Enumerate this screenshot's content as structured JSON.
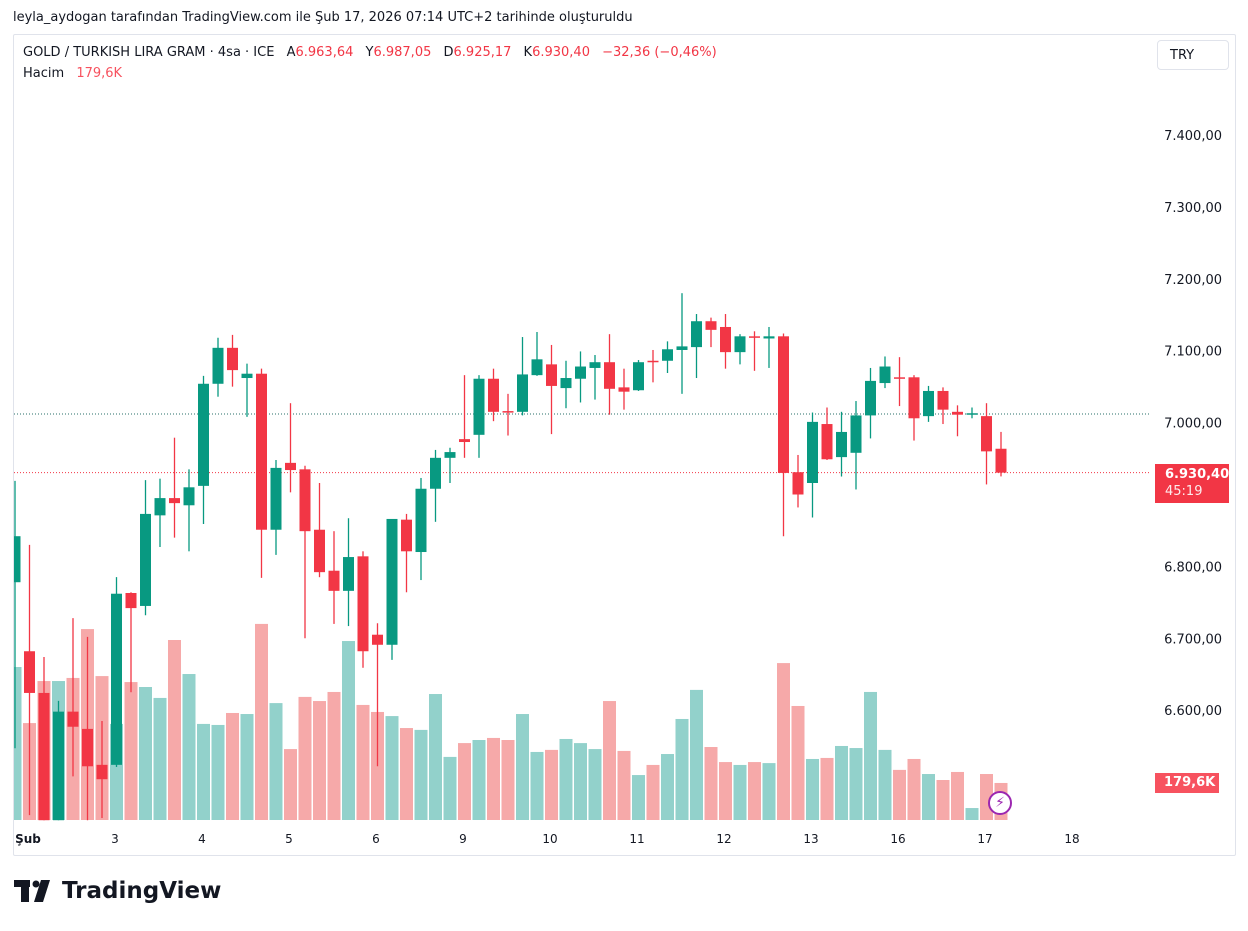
{
  "caption": "leyla_aydogan tarafından TradingView.com ile Şub 17, 2026 07:14 UTC+2 tarihinde oluşturuldu",
  "legend": {
    "symbol": "GOLD / TURKISH LIRA GRAM · 4sa · ICE",
    "open_label": "A",
    "open": "6.963,64",
    "high_label": "Y",
    "high": "6.987,05",
    "low_label": "D",
    "low": "6.925,17",
    "close_label": "K",
    "close": "6.930,40",
    "change": "−32,36 (−0,46%)",
    "volume_label": "Hacim",
    "volume": "179,6K"
  },
  "currency_button": "TRY",
  "price_badge": {
    "price": "6.930,40",
    "countdown": "45:19"
  },
  "volume_badge": "179,6K",
  "logo_text": "TradingView",
  "colors": {
    "up": "#089981",
    "down": "#f23645",
    "vol_up": "#92d1cb",
    "vol_down": "#f6a9a9"
  },
  "chart_data": {
    "type": "candlestick",
    "timeframe": "4h",
    "price_axis_ticks": [
      "7.400,00",
      "7.300,00",
      "7.200,00",
      "7.100,00",
      "7.000,00",
      "6.800,00",
      "6.700,00",
      "6.600,00"
    ],
    "price_axis_values": [
      7400,
      7300,
      7200,
      7100,
      7000,
      6800,
      6700,
      6600
    ],
    "time_axis_ticks": [
      "Şub",
      "3",
      "4",
      "5",
      "6",
      "9",
      "10",
      "11",
      "12",
      "13",
      "16",
      "17",
      "18"
    ],
    "last_price": 6930.4,
    "prev_level": 7012,
    "ohlc": [
      [
        6778,
        6919,
        6547,
        6842
      ],
      [
        6682,
        6830,
        6454,
        6624
      ],
      [
        6624,
        6674,
        6447,
        6447
      ],
      [
        6447,
        6613,
        6447,
        6598
      ],
      [
        6598,
        6728,
        6508,
        6577
      ],
      [
        6574,
        6702,
        6447,
        6522
      ],
      [
        6524,
        6585,
        6450,
        6504
      ],
      [
        6524,
        6785,
        6521,
        6762
      ],
      [
        6763,
        6764,
        6625,
        6742
      ],
      [
        6745,
        6920,
        6732,
        6873
      ],
      [
        6871,
        6922,
        6827,
        6895
      ],
      [
        6895,
        6979,
        6840,
        6888
      ],
      [
        6885,
        6935,
        6821,
        6910
      ],
      [
        6912,
        7065,
        6859,
        7054
      ],
      [
        7054,
        7118,
        7036,
        7104
      ],
      [
        7104,
        7122,
        7050,
        7073
      ],
      [
        7062,
        7082,
        7008,
        7068
      ],
      [
        7068,
        7075,
        6784,
        6851
      ],
      [
        6851,
        6948,
        6816,
        6937
      ],
      [
        6944,
        7027,
        6903,
        6934
      ],
      [
        6935,
        6940,
        6700,
        6849
      ],
      [
        6851,
        6916,
        6785,
        6792
      ],
      [
        6794,
        6849,
        6720,
        6766
      ],
      [
        6766,
        6867,
        6717,
        6813
      ],
      [
        6814,
        6821,
        6659,
        6682
      ],
      [
        6705,
        6721,
        6522,
        6691
      ],
      [
        6691,
        6866,
        6670,
        6866
      ],
      [
        6865,
        6873,
        6764,
        6821
      ],
      [
        6820,
        6923,
        6781,
        6908
      ],
      [
        6908,
        6962,
        6862,
        6951
      ],
      [
        6951,
        6965,
        6916,
        6959
      ],
      [
        6977,
        7066,
        6951,
        6973
      ],
      [
        6983,
        7066,
        6951,
        7061
      ],
      [
        7061,
        7075,
        7002,
        7015
      ],
      [
        7016,
        7040,
        6982,
        7015
      ],
      [
        7015,
        7119,
        7010,
        7067
      ],
      [
        7066,
        7126,
        7065,
        7088
      ],
      [
        7081,
        7108,
        6984,
        7051
      ],
      [
        7048,
        7086,
        7020,
        7062
      ],
      [
        7061,
        7099,
        7028,
        7078
      ],
      [
        7076,
        7094,
        7032,
        7084
      ],
      [
        7084,
        7123,
        7011,
        7047
      ],
      [
        7049,
        7075,
        7018,
        7043
      ],
      [
        7045,
        7087,
        7044,
        7084
      ],
      [
        7086,
        7101,
        7056,
        7085
      ],
      [
        7086,
        7113,
        7069,
        7102
      ],
      [
        7101,
        7180,
        7040,
        7106
      ],
      [
        7105,
        7151,
        7062,
        7141
      ],
      [
        7141,
        7146,
        7105,
        7129
      ],
      [
        7133,
        7151,
        7075,
        7098
      ],
      [
        7098,
        7123,
        7081,
        7120
      ],
      [
        7120,
        7127,
        7072,
        7119
      ],
      [
        7117,
        7133,
        7076,
        7120
      ],
      [
        7120,
        7124,
        6842,
        6930
      ],
      [
        6931,
        6955,
        6882,
        6900
      ],
      [
        6916,
        7014,
        6868,
        7001
      ],
      [
        6998,
        7021,
        6948,
        6949
      ],
      [
        6952,
        7015,
        6925,
        6987
      ],
      [
        6958,
        7030,
        6907,
        7010
      ],
      [
        7010,
        7076,
        6978,
        7058
      ],
      [
        7055,
        7092,
        7048,
        7078
      ],
      [
        7063,
        7091,
        7023,
        7062
      ],
      [
        7063,
        7066,
        6975,
        7006
      ],
      [
        7009,
        7051,
        7001,
        7044
      ],
      [
        7044,
        7049,
        6998,
        7018
      ],
      [
        7015,
        7024,
        6981,
        7011
      ],
      [
        7012,
        7021,
        7006,
        7013
      ],
      [
        7009,
        7027,
        6914,
        6960
      ],
      [
        6963.64,
        6987.05,
        6925.17,
        6930.4
      ]
    ],
    "volume_k": [
      742,
      470,
      674,
      674,
      689,
      926,
      698,
      466,
      669,
      645,
      592,
      873,
      708,
      466,
      461,
      519,
      514,
      951,
      567,
      344,
      597,
      577,
      621,
      868,
      558,
      524,
      504,
      446,
      437,
      611,
      306,
      373,
      388,
      398,
      388,
      514,
      330,
      340,
      393,
      373,
      344,
      577,
      335,
      218,
      267,
      320,
      490,
      631,
      354,
      281,
      267,
      281,
      276,
      761,
      553,
      296,
      301,
      359,
      349,
      621,
      340,
      243,
      296,
      223,
      194,
      233,
      58,
      223,
      179.6
    ]
  }
}
